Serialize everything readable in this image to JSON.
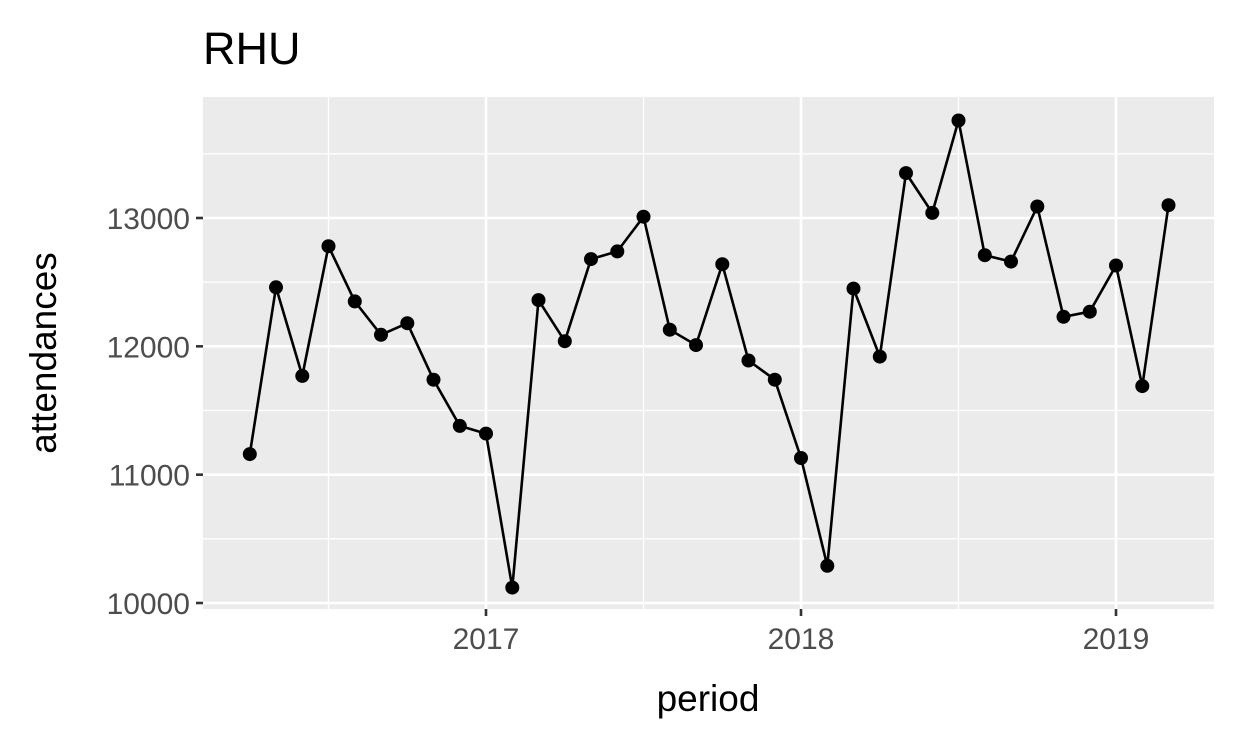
{
  "chart_data": {
    "type": "line",
    "title": "RHU",
    "xlabel": "period",
    "ylabel": "attendances",
    "x_ticks": [
      "2017",
      "2018",
      "2019"
    ],
    "y_ticks": [
      10000,
      11000,
      12000,
      13000
    ],
    "ylim": [
      9950,
      13950
    ],
    "grid": true,
    "legend": "none",
    "series": [
      {
        "x": [
          "2016-04",
          "2016-05",
          "2016-06",
          "2016-07",
          "2016-08",
          "2016-09",
          "2016-10",
          "2016-11",
          "2016-12",
          "2017-01",
          "2017-02",
          "2017-03",
          "2017-04",
          "2017-05",
          "2017-06",
          "2017-07",
          "2017-08",
          "2017-09",
          "2017-10",
          "2017-11",
          "2017-12",
          "2018-01",
          "2018-02",
          "2018-03",
          "2018-04",
          "2018-05",
          "2018-06",
          "2018-07",
          "2018-08",
          "2018-09",
          "2018-10",
          "2018-11",
          "2018-12",
          "2019-01",
          "2019-02",
          "2019-03"
        ],
        "values": [
          11160,
          12460,
          11770,
          12780,
          12350,
          12090,
          12180,
          11740,
          11380,
          11320,
          10120,
          12360,
          12040,
          12680,
          12740,
          13010,
          12130,
          12010,
          12640,
          11890,
          11740,
          11130,
          10290,
          12450,
          11920,
          13350,
          13040,
          13760,
          12710,
          12660,
          13090,
          12230,
          12270,
          12630,
          11690,
          13100
        ]
      }
    ],
    "colors": {
      "panel": "#ebebeb",
      "grid": "#ffffff",
      "line": "#000000",
      "tick_text": "#4d4d4d"
    }
  }
}
